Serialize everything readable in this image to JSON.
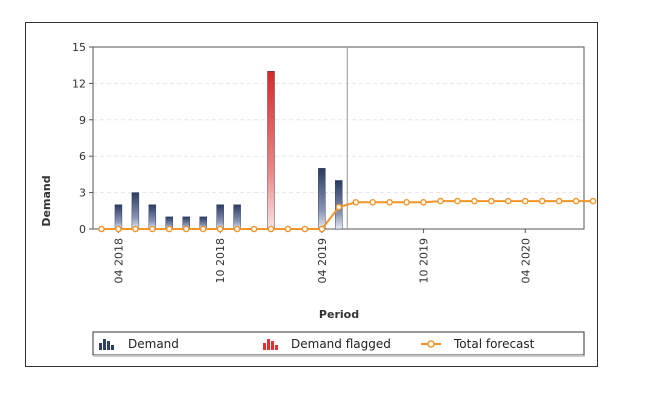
{
  "chart_data": {
    "type": "bar",
    "xlabel": "Period",
    "ylabel": "Demand",
    "ylim": [
      0,
      15
    ],
    "yticks": [
      0,
      3,
      6,
      9,
      12,
      15
    ],
    "grid": true,
    "legend_position": "bottom",
    "x_tick_labels": [
      "04 2018",
      "10 2018",
      "04 2019",
      "10 2019",
      "04 2020"
    ],
    "series": [
      {
        "name": "Demand",
        "type": "bar",
        "color": "#2f3f66",
        "periods": [
          "03 2018",
          "04 2018",
          "05 2018",
          "06 2018",
          "07 2018",
          "08 2018",
          "09 2018",
          "10 2018",
          "11 2018",
          "12 2018",
          "01 2019",
          "02 2019",
          "03 2019",
          "04 2019",
          "05 2019"
        ],
        "values": [
          0,
          2,
          3,
          2,
          1,
          1,
          1,
          2,
          2,
          0,
          0,
          0,
          0,
          5,
          4
        ]
      },
      {
        "name": "Demand flagged",
        "type": "bar",
        "color": "#e03030",
        "periods": [
          "01 2019"
        ],
        "values": [
          13
        ]
      },
      {
        "name": "Total forecast",
        "type": "line",
        "color": "#f0962a",
        "periods": [
          "03 2018",
          "04 2018",
          "05 2018",
          "06 2018",
          "07 2018",
          "08 2018",
          "09 2018",
          "10 2018",
          "11 2018",
          "12 2018",
          "01 2019",
          "02 2019",
          "03 2019",
          "04 2019",
          "05 2019",
          "06 2019",
          "07 2019",
          "08 2019",
          "09 2019",
          "10 2019",
          "11 2019",
          "12 2019",
          "01 2020",
          "02 2020",
          "03 2020",
          "04 2020",
          "05 2020",
          "06 2020",
          "07 2020",
          "08 2020"
        ],
        "values": [
          0,
          0,
          0,
          0,
          0,
          0,
          0,
          0,
          0,
          0,
          0,
          0,
          0,
          0,
          1.8,
          2.2,
          2.2,
          2.2,
          2.2,
          2.2,
          2.3,
          2.3,
          2.3,
          2.3,
          2.3,
          2.3,
          2.3,
          2.3,
          2.3,
          2.3
        ]
      }
    ],
    "forecast_start": "06 2019"
  }
}
